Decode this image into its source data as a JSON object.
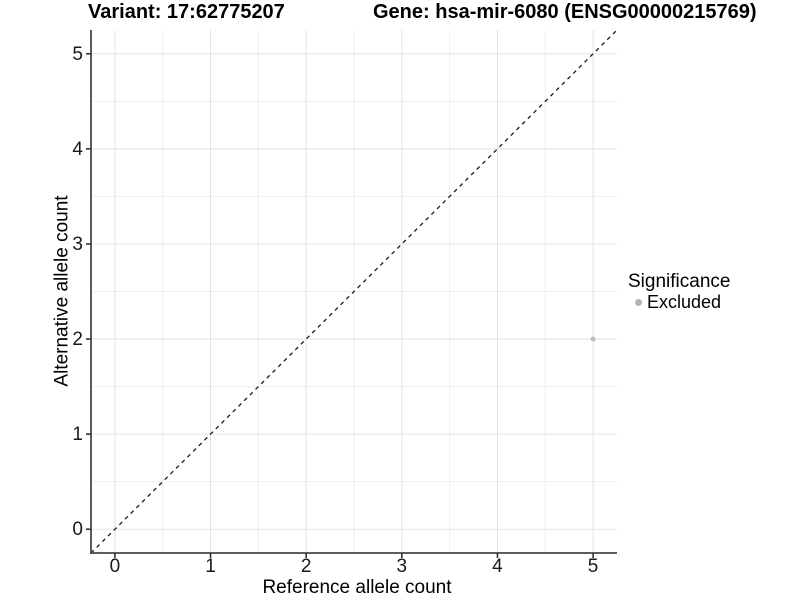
{
  "chart_data": {
    "type": "scatter",
    "title_left": "Variant: 17:62775207",
    "title_right": "Gene: hsa-mir-6080 (ENSG00000215769)",
    "xlabel": "Reference allele count",
    "ylabel": "Alternative allele count",
    "xlim": [
      -0.25,
      5.25
    ],
    "ylim": [
      -0.25,
      5.25
    ],
    "x_ticks": [
      0,
      1,
      2,
      3,
      4,
      5
    ],
    "y_ticks": [
      0,
      1,
      2,
      3,
      4,
      5
    ],
    "grid": "major+minor",
    "reference_line": {
      "type": "identity y=x",
      "style": "dashed",
      "color": "#1a1a1a"
    },
    "series": [
      {
        "name": "Excluded",
        "points": [
          [
            5,
            2
          ]
        ],
        "color": "#bdbdbd",
        "marker_radius": 2.5
      }
    ],
    "legend": {
      "position": "right",
      "title": "Significance",
      "items": [
        {
          "label": "Excluded",
          "color": "#b5b5b5",
          "marker_radius": 3.5
        }
      ]
    },
    "colors": {
      "background": "#ffffff",
      "major_grid": "#e3e3e3",
      "minor_grid": "#efefef",
      "axis_line": "#474747",
      "tick": "#333333",
      "text": "#000000"
    }
  }
}
